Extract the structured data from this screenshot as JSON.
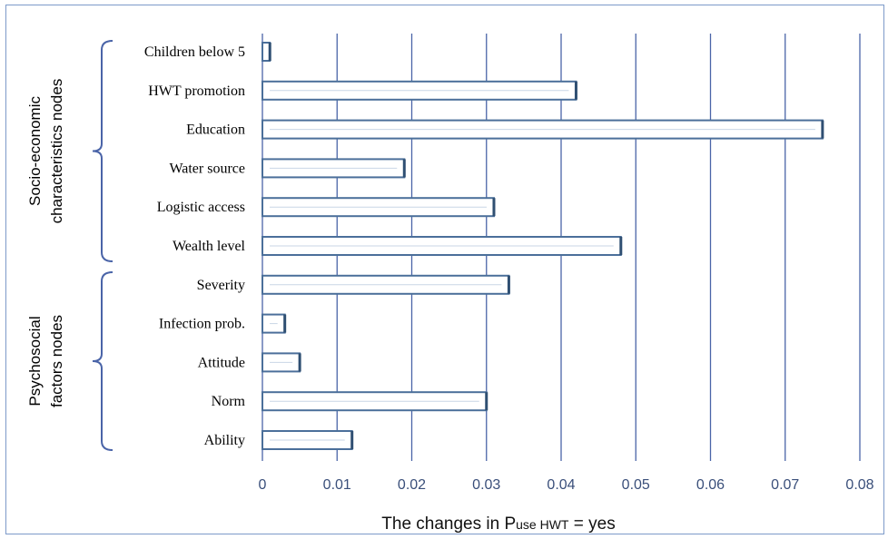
{
  "chart_data": {
    "type": "bar",
    "orientation": "horizontal",
    "categories": [
      "Children below 5",
      "HWT promotion",
      "Education",
      "Water source",
      "Logistic access",
      "Wealth level",
      "Severity",
      "Infection prob.",
      "Attitude",
      "Norm",
      "Ability"
    ],
    "values": [
      0.001,
      0.042,
      0.075,
      0.019,
      0.031,
      0.048,
      0.033,
      0.003,
      0.005,
      0.03,
      0.012
    ],
    "xlim": [
      0,
      0.08
    ],
    "xticks": [
      "0",
      "0.01",
      "0.02",
      "0.03",
      "0.04",
      "0.05",
      "0.06",
      "0.07",
      "0.08"
    ],
    "xlabel": {
      "prefix": "The changes in P",
      "subscript": "use HWT",
      "suffix": " = yes"
    },
    "groups": [
      {
        "label_line1": "Socio-economic",
        "label_line2": "characteristics nodes",
        "categories": [
          "Children below 5",
          "HWT promotion",
          "Education",
          "Water source",
          "Logistic access",
          "Wealth level"
        ]
      },
      {
        "label_line1": "Psychosocial",
        "label_line2": "factors nodes",
        "categories": [
          "Severity",
          "Infection prob.",
          "Attitude",
          "Norm",
          "Ability"
        ]
      }
    ],
    "grid": "vertical",
    "colors": {
      "bar_fill": "#ffffff",
      "bar_edge": "#4b6f9a",
      "bar_inner_line": "#c9d6e6",
      "gridline": "#4a64a8",
      "bracket": "#4a64a8"
    }
  }
}
